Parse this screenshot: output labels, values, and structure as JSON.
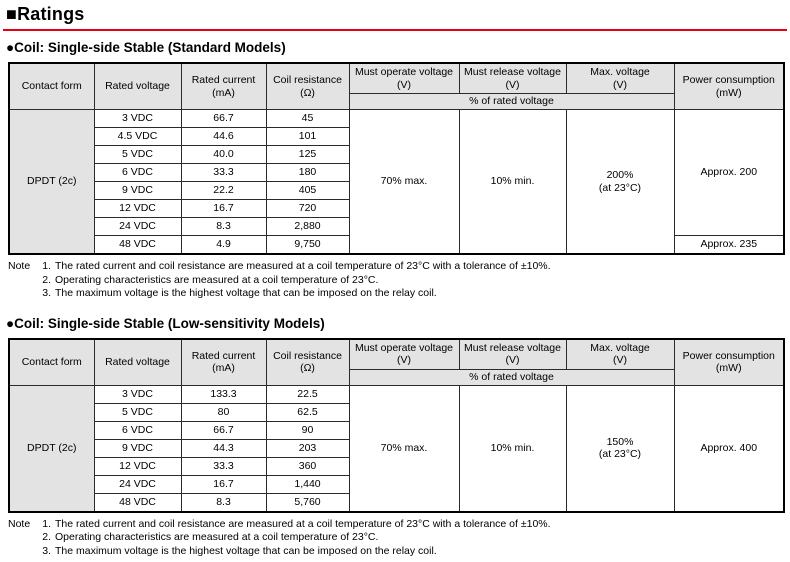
{
  "page": {
    "title_bullet": "■",
    "title": "Ratings",
    "accent_red": "#e60012",
    "header_bg": "#e3e3e3"
  },
  "header_labels": {
    "contact_form": "Contact form",
    "rated_voltage": "Rated voltage",
    "rated_current": "Rated current\n(mA)",
    "coil_resistance": "Coil resistance\n(Ω)",
    "must_operate": "Must operate voltage\n(V)",
    "must_release": "Must release voltage\n(V)",
    "max_voltage": "Max. voltage\n(V)",
    "power_consumption": "Power consumption\n(mW)",
    "pct_of_rated": "% of rated voltage"
  },
  "tables": [
    {
      "bullet": "●",
      "heading": "Coil: Single-side Stable (Standard Models)",
      "contact_form": "DPDT (2c)",
      "must_operate": "70% max.",
      "must_release": "10% min.",
      "max_voltage": "200%\n(at 23°C)",
      "power_consumption": "Approx. 200",
      "power_consumption_last": "Approx. 235",
      "rows": [
        {
          "voltage": "3 VDC",
          "current": "66.7",
          "resistance": "45"
        },
        {
          "voltage": "4.5 VDC",
          "current": "44.6",
          "resistance": "101"
        },
        {
          "voltage": "5 VDC",
          "current": "40.0",
          "resistance": "125"
        },
        {
          "voltage": "6 VDC",
          "current": "33.3",
          "resistance": "180"
        },
        {
          "voltage": "9 VDC",
          "current": "22.2",
          "resistance": "405"
        },
        {
          "voltage": "12 VDC",
          "current": "16.7",
          "resistance": "720"
        },
        {
          "voltage": "24 VDC",
          "current": "8.3",
          "resistance": "2,880"
        },
        {
          "voltage": "48 VDC",
          "current": "4.9",
          "resistance": "9,750"
        }
      ]
    },
    {
      "bullet": "●",
      "heading": "Coil: Single-side Stable (Low-sensitivity Models)",
      "contact_form": "DPDT (2c)",
      "must_operate": "70% max.",
      "must_release": "10% min.",
      "max_voltage": "150%\n(at 23°C)",
      "power_consumption": "Approx. 400",
      "rows": [
        {
          "voltage": "3 VDC",
          "current": "133.3",
          "resistance": "22.5"
        },
        {
          "voltage": "5 VDC",
          "current": "80",
          "resistance": "62.5"
        },
        {
          "voltage": "6 VDC",
          "current": "66.7",
          "resistance": "90"
        },
        {
          "voltage": "9 VDC",
          "current": "44.3",
          "resistance": "203"
        },
        {
          "voltage": "12 VDC",
          "current": "33.3",
          "resistance": "360"
        },
        {
          "voltage": "24 VDC",
          "current": "16.7",
          "resistance": "1,440"
        },
        {
          "voltage": "48 VDC",
          "current": "8.3",
          "resistance": "5,760"
        }
      ]
    }
  ],
  "notes": {
    "label": "Note",
    "items": [
      {
        "num": "1.",
        "text": "The rated current and coil resistance are measured at a coil temperature of 23°C with a tolerance of ±10%."
      },
      {
        "num": "2.",
        "text": "Operating characteristics are measured at a coil temperature of 23°C."
      },
      {
        "num": "3.",
        "text": "The maximum voltage is the highest voltage that can be imposed on the relay coil."
      }
    ]
  }
}
